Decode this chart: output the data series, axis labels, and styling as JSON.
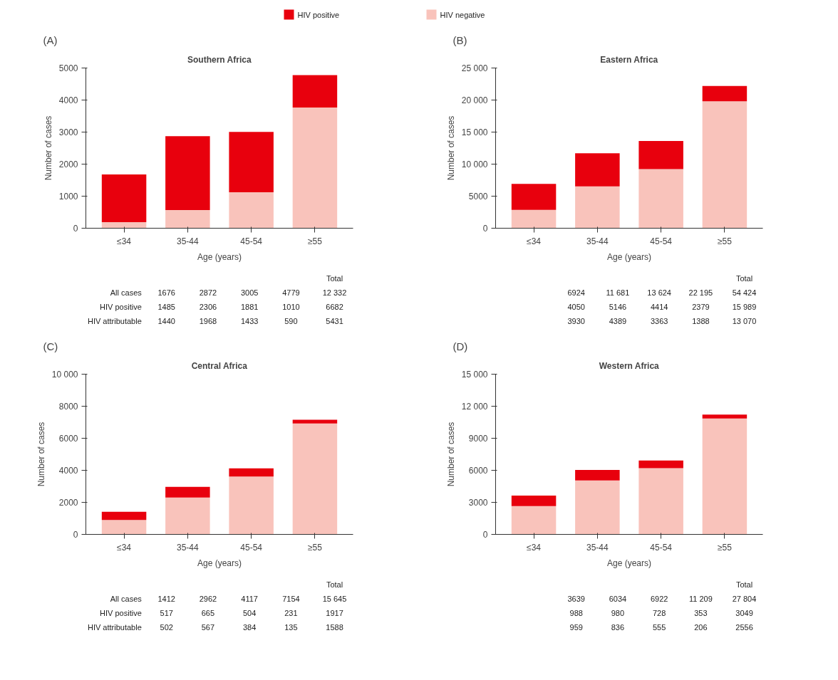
{
  "chart_data": [
    {
      "type": "bar",
      "stacked": true,
      "title": "Southern Africa",
      "xlabel": "Age (years)",
      "ylabel": "Number of cases",
      "legend": "top",
      "categories": [
        "≤34",
        "35-44",
        "45-54",
        "≥55"
      ],
      "series": [
        {
          "name": "HIV negative",
          "color": "#f9c3bb",
          "values": [
            191,
            566,
            1124,
            3769
          ]
        },
        {
          "name": "HIV positive",
          "color": "#e8000d",
          "values": [
            1485,
            2306,
            1881,
            1010
          ]
        }
      ],
      "ylim": [
        0,
        5000
      ],
      "yticks": [
        0,
        1000,
        2000,
        3000,
        4000,
        5000
      ],
      "annotations": [
        "(A)",
        "Total",
        "All cases",
        "HIV positive",
        "HIV attributable",
        "12 332",
        "6682",
        "5431",
        "1676",
        "2872",
        "3005",
        "4779",
        "1485",
        "2306",
        "1881",
        "1010",
        "1440",
        "1968",
        "1433",
        "590"
      ]
    },
    {
      "type": "bar",
      "stacked": true,
      "title": "Eastern Africa",
      "xlabel": "Age (years)",
      "ylabel": "Number of cases",
      "categories": [
        "≤34",
        "35-44",
        "45-54",
        "≥55"
      ],
      "series": [
        {
          "color": "#f9c3bb",
          "values": [
            2874,
            6535,
            9210,
            19816
          ]
        },
        {
          "color": "#e8000d",
          "values": [
            4050,
            5146,
            4414,
            2379
          ]
        }
      ],
      "ylim": [
        0,
        25000
      ],
      "yticks": [
        0,
        5000,
        {
          "value": 10000,
          "label": "10 000"
        },
        {
          "value": 15000,
          "label": "15 000"
        },
        {
          "value": 20000,
          "label": "20 000"
        },
        {
          "value": 25000,
          "label": "25 000"
        }
      ],
      "annotations": [
        "(B)",
        "Total",
        "54 424",
        "15 989",
        "13 070",
        "6924",
        "11 681",
        "13 624",
        "22 195",
        "4050",
        "5146",
        "4414",
        "2379",
        "3930",
        "4389",
        "3363",
        "1388"
      ]
    },
    {
      "type": "bar",
      "stacked": true,
      "title": "Central Africa",
      "xlabel": "Age (years)",
      "ylabel": "Number of cases",
      "categories": [
        "≤34",
        "35-44",
        "45-54",
        "≥55"
      ],
      "series": [
        {
          "color": "#f9c3bb",
          "values": [
            895,
            2297,
            3613,
            6923
          ]
        },
        {
          "color": "#e8000d",
          "values": [
            517,
            665,
            504,
            231
          ]
        }
      ],
      "ylim": [
        0,
        10000
      ],
      "yticks": [
        0,
        2000,
        4000,
        6000,
        8000,
        {
          "value": 10000,
          "label": "10 000"
        }
      ],
      "annotations": [
        "(C)",
        "Total",
        "All cases",
        "HIV positive",
        "HIV attributable",
        "15 645",
        "1917",
        "1588",
        "1412",
        "2962",
        "4117",
        "7154",
        "517",
        "665",
        "504",
        "231",
        "502",
        "567",
        "384",
        "135"
      ]
    },
    {
      "type": "bar",
      "stacked": true,
      "title": "Western Africa",
      "xlabel": "Age (years)",
      "ylabel": "Number of cases",
      "categories": [
        "≤34",
        "35-44",
        "45-54",
        "≥55"
      ],
      "series": [
        {
          "color": "#f9c3bb",
          "values": [
            2651,
            5054,
            6194,
            10856
          ]
        },
        {
          "color": "#e8000d",
          "values": [
            988,
            980,
            728,
            353
          ]
        }
      ],
      "ylim": [
        0,
        15000
      ],
      "yticks": [
        0,
        3000,
        6000,
        9000,
        {
          "value": 12000,
          "label": "12 000"
        },
        {
          "value": 15000,
          "label": "15 000"
        }
      ],
      "annotations": [
        "(D)",
        "Total",
        "27 804",
        "3049",
        "2556",
        "3639",
        "6034",
        "6922",
        "11 209",
        "988",
        "980",
        "728",
        "353",
        "959",
        "836",
        "555",
        "206"
      ]
    }
  ]
}
